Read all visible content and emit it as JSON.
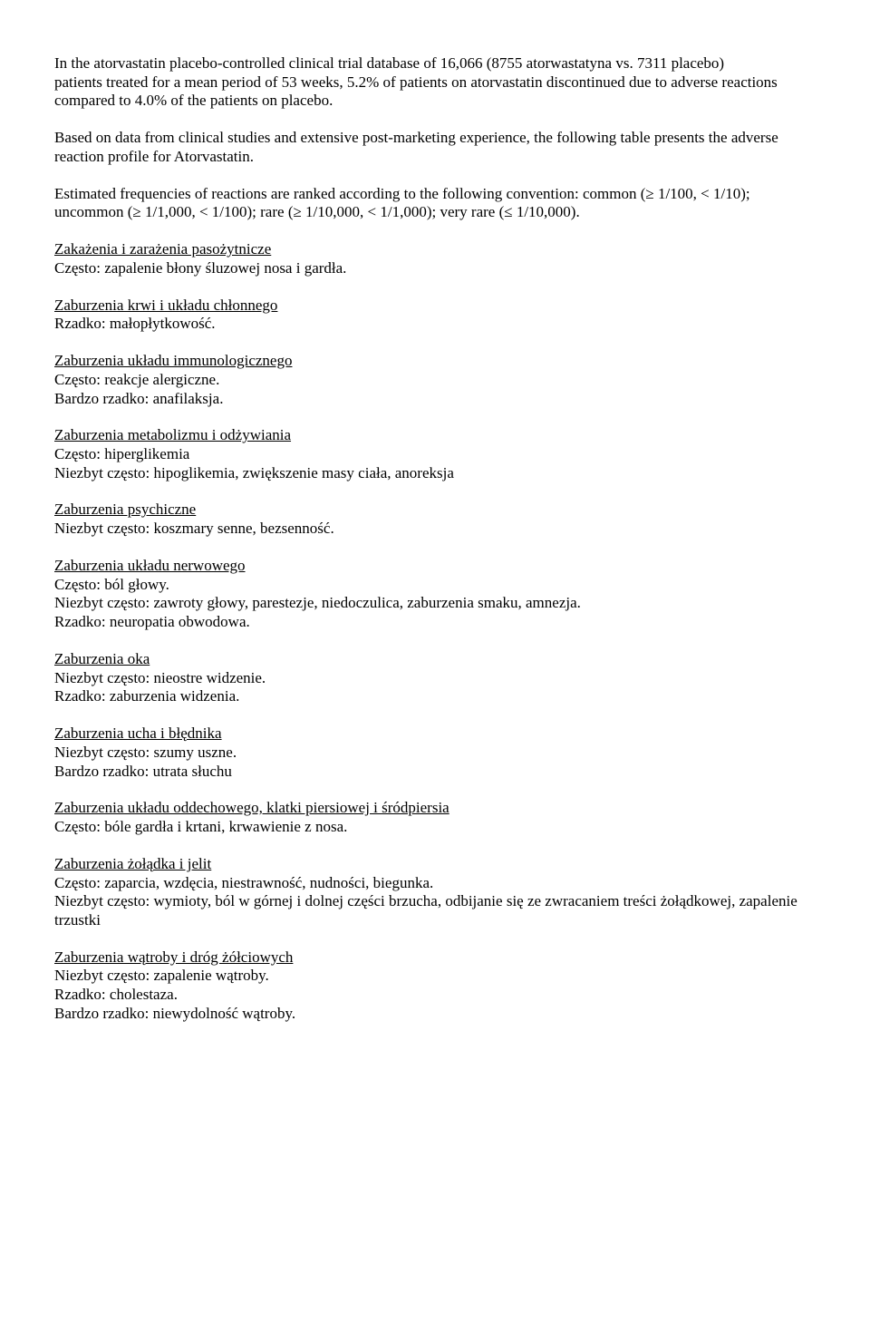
{
  "intro1": "In the atorvastatin placebo-controlled clinical trial database of 16,066 (8755 atorwastatyna  vs. 7311 placebo)",
  "intro2": "patients treated for a mean period of 53 weeks, 5.2% of patients on atorvastatin discontinued due to adverse reactions compared to 4.0% of the patients on placebo.",
  "para2": "Based on data from clinical studies and extensive post-marketing experience, the following table presents the adverse reaction profile for Atorvastatin.",
  "para3": "Estimated frequencies of reactions are ranked according to the following convention: common (≥ 1/100, < 1/10); uncommon (≥ 1/1,000, < 1/100); rare (≥ 1/10,000, < 1/1,000); very rare (≤ 1/10,000).",
  "sections": [
    {
      "heading": "Zakażenia i zarażenia pasożytnicze",
      "lines": [
        "Często: zapalenie błony śluzowej nosa i gardła."
      ]
    },
    {
      "heading": "Zaburzenia krwi i układu chłonnego",
      "lines": [
        "Rzadko: małopłytkowość."
      ]
    },
    {
      "heading": "Zaburzenia układu immunologicznego",
      "lines": [
        "Często: reakcje alergiczne.",
        "Bardzo rzadko: anafilaksja."
      ]
    },
    {
      "heading": "Zaburzenia metabolizmu i odżywiania",
      "lines": [
        "Często: hiperglikemia",
        "Niezbyt często: hipoglikemia, zwiększenie masy ciała, anoreksja"
      ]
    },
    {
      "heading": "Zaburzenia psychiczne",
      "lines": [
        "Niezbyt często: koszmary senne, bezsenność."
      ]
    },
    {
      "heading": "Zaburzenia układu nerwowego",
      "lines": [
        "Często: ból głowy.",
        "Niezbyt często: zawroty głowy, parestezje, niedoczulica, zaburzenia smaku, amnezja.",
        "Rzadko: neuropatia obwodowa."
      ]
    },
    {
      "heading": "Zaburzenia oka",
      "lines": [
        "Niezbyt często: nieostre widzenie.",
        "Rzadko: zaburzenia widzenia."
      ]
    },
    {
      "heading": "Zaburzenia ucha i błędnika",
      "lines": [
        "Niezbyt często: szumy uszne.",
        "Bardzo rzadko: utrata słuchu"
      ]
    },
    {
      "heading": "Zaburzenia układu oddechowego, klatki piersiowej i śródpiersia",
      "lines": [
        "Często: bóle gardła i krtani, krwawienie z nosa."
      ]
    },
    {
      "heading": "Zaburzenia żołądka i jelit",
      "lines": [
        "Często: zaparcia, wzdęcia, niestrawność, nudności, biegunka.",
        "Niezbyt często: wymioty, ból w górnej i dolnej części brzucha, odbijanie się ze zwracaniem treści żołądkowej, zapalenie trzustki"
      ]
    },
    {
      "heading": "Zaburzenia wątroby i dróg żółciowych",
      "lines": [
        "Niezbyt często: zapalenie wątroby.",
        "Rzadko: cholestaza.",
        "Bardzo rzadko: niewydolność wątroby."
      ]
    }
  ]
}
